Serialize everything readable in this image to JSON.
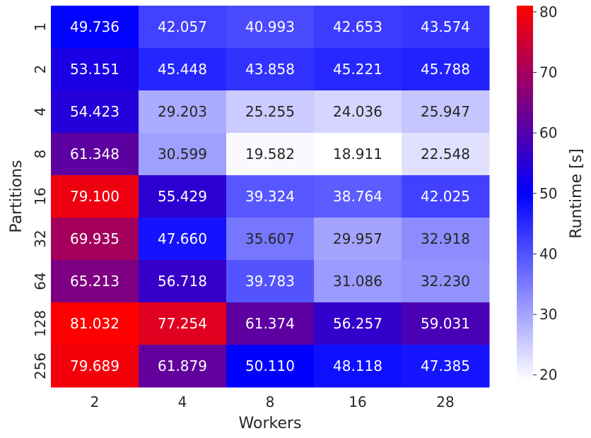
{
  "chart_data": {
    "type": "heatmap",
    "title": "",
    "xlabel": "Workers",
    "ylabel": "Partitions",
    "x_categories": [
      "2",
      "4",
      "8",
      "16",
      "28"
    ],
    "y_categories": [
      "1",
      "2",
      "4",
      "8",
      "16",
      "32",
      "64",
      "128",
      "256"
    ],
    "values": [
      [
        49.736,
        42.057,
        40.993,
        42.653,
        43.574
      ],
      [
        53.151,
        45.448,
        43.858,
        45.221,
        45.788
      ],
      [
        54.423,
        29.203,
        25.255,
        24.036,
        25.947
      ],
      [
        61.348,
        30.599,
        19.582,
        18.911,
        22.548
      ],
      [
        79.1,
        55.429,
        39.324,
        38.764,
        42.025
      ],
      [
        69.935,
        47.66,
        35.607,
        29.957,
        32.918
      ],
      [
        65.213,
        56.718,
        39.783,
        31.086,
        32.23
      ],
      [
        81.032,
        77.254,
        61.374,
        56.257,
        59.031
      ],
      [
        79.689,
        61.879,
        50.11,
        48.118,
        47.385
      ]
    ],
    "value_labels": [
      [
        "49.736",
        "42.057",
        "40.993",
        "42.653",
        "43.574"
      ],
      [
        "53.151",
        "45.448",
        "43.858",
        "45.221",
        "45.788"
      ],
      [
        "54.423",
        "29.203",
        "25.255",
        "24.036",
        "25.947"
      ],
      [
        "61.348",
        "30.599",
        "19.582",
        "18.911",
        "22.548"
      ],
      [
        "79.100",
        "55.429",
        "39.324",
        "38.764",
        "42.025"
      ],
      [
        "69.935",
        "47.660",
        "35.607",
        "29.957",
        "32.918"
      ],
      [
        "65.213",
        "56.718",
        "39.783",
        "31.086",
        "32.230"
      ],
      [
        "81.032",
        "77.254",
        "61.374",
        "56.257",
        "59.031"
      ],
      [
        "79.689",
        "61.879",
        "50.110",
        "48.118",
        "47.385"
      ]
    ],
    "colorbar": {
      "label": "Runtime [s]",
      "range": [
        18.911,
        81.032
      ],
      "ticks": [
        "20",
        "30",
        "40",
        "50",
        "60",
        "70",
        "80"
      ],
      "colormap": [
        "#ffffff",
        "#0000ff",
        "#ff0000"
      ]
    },
    "grid": false,
    "legend": "none"
  }
}
